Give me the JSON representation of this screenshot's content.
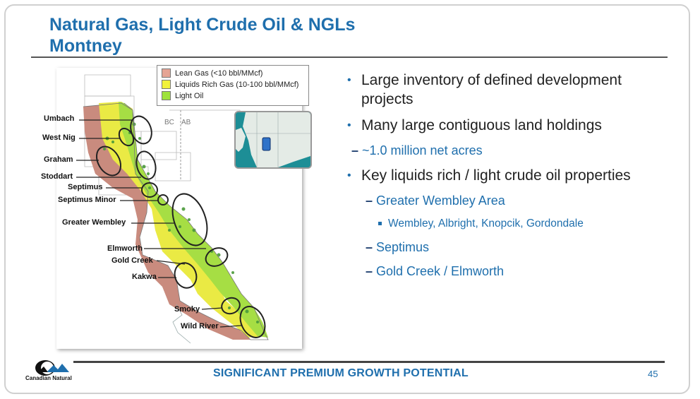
{
  "title": {
    "line1": "Natural Gas, Light Crude Oil & NGLs",
    "line2": "Montney"
  },
  "legend": [
    {
      "label": "Lean Gas (<10 bbl/MMcf)",
      "color": "#e5a495"
    },
    {
      "label": "Liquids Rich Gas (10-100 bbl/MMcf)",
      "color": "#f1f23c"
    },
    {
      "label": "Light Oil",
      "color": "#9ee23b"
    }
  ],
  "map": {
    "border_labels": {
      "bc": "BC",
      "ab": "AB"
    },
    "places": [
      "Umbach",
      "West Nig",
      "Graham",
      "Stoddart",
      "Septimus",
      "Septimus Minor",
      "Greater Wembley",
      "Elmworth",
      "Gold Creek",
      "Kakwa",
      "Smoky",
      "Wild River"
    ]
  },
  "bullets": {
    "b1": "Large inventory of defined development projects",
    "b2": "Many large contiguous land holdings",
    "b2_sub": "~1.0 million net acres",
    "b3": "Key liquids rich / light crude oil properties",
    "b3_sub1": "Greater Wembley Area",
    "b3_sub1_detail": "Wembley, Albright, Knopcik, Gordondale",
    "b3_sub2": "Septimus",
    "b3_sub3": "Gold Creek / Elmworth"
  },
  "footer": {
    "text": "SIGNIFICANT PREMIUM GROWTH POTENTIAL",
    "page": "45",
    "logo_text": "Canadian Natural"
  }
}
